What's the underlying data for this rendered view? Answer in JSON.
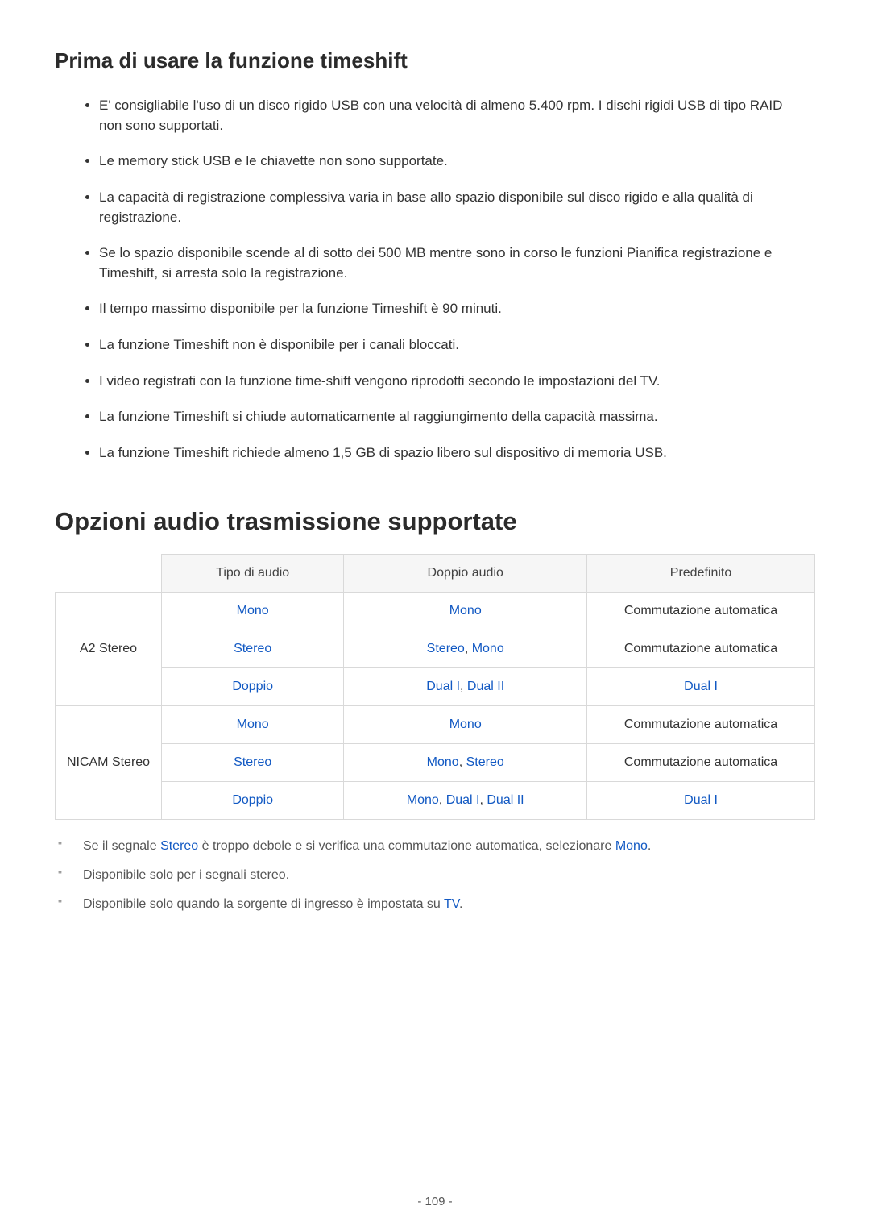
{
  "section1": {
    "title": "Prima di usare la funzione timeshift",
    "bullets": [
      "E' consigliabile l'uso di un disco rigido USB con una velocità di almeno 5.400 rpm. I dischi rigidi USB di tipo RAID non sono supportati.",
      "Le memory stick USB e le chiavette non sono supportate.",
      "La capacità di registrazione complessiva varia in base allo spazio disponibile sul disco rigido e alla qualità di registrazione.",
      "Se lo spazio disponibile scende al di sotto dei 500 MB mentre sono in corso le funzioni Pianifica registrazione e Timeshift, si arresta solo la registrazione.",
      "Il tempo massimo disponibile per la funzione Timeshift è 90 minuti.",
      "La funzione Timeshift non è disponibile per i canali bloccati.",
      "I video registrati con la funzione time-shift vengono riprodotti secondo le impostazioni del TV.",
      "La funzione Timeshift si chiude automaticamente al raggiungimento della capacità massima.",
      "La funzione Timeshift richiede almeno 1,5 GB di spazio libero sul dispositivo di memoria USB."
    ]
  },
  "section2": {
    "title": "Opzioni audio trasmissione supportate",
    "table": {
      "headers": [
        "",
        "Tipo di audio",
        "Doppio audio",
        "Predefinito"
      ],
      "col_widths_pct": [
        14,
        24,
        32,
        30
      ],
      "header_bg": "#f6f6f6",
      "border_color": "#d9d9d9",
      "accent_color": "#1259c3",
      "text_color_normal": "#333333",
      "groups": [
        {
          "label": "A2 Stereo",
          "rows": [
            {
              "tipo": {
                "text": "Mono",
                "accent": true
              },
              "doppio": {
                "text": "Mono",
                "accent": true
              },
              "pred": {
                "text": "Commutazione automatica",
                "accent": false
              }
            },
            {
              "tipo": {
                "text": "Stereo",
                "accent": true
              },
              "doppio_parts": [
                {
                  "text": "Stereo",
                  "accent": true
                },
                {
                  "text": ", ",
                  "accent": false
                },
                {
                  "text": "Mono",
                  "accent": true
                }
              ],
              "pred": {
                "text": "Commutazione automatica",
                "accent": false
              }
            },
            {
              "tipo": {
                "text": "Doppio",
                "accent": true
              },
              "doppio_parts": [
                {
                  "text": "Dual I",
                  "accent": true
                },
                {
                  "text": ", ",
                  "accent": false
                },
                {
                  "text": "Dual II",
                  "accent": true
                }
              ],
              "pred": {
                "text": "Dual I",
                "accent": true
              }
            }
          ]
        },
        {
          "label": "NICAM Stereo",
          "rows": [
            {
              "tipo": {
                "text": "Mono",
                "accent": true
              },
              "doppio": {
                "text": "Mono",
                "accent": true
              },
              "pred": {
                "text": "Commutazione automatica",
                "accent": false
              }
            },
            {
              "tipo": {
                "text": "Stereo",
                "accent": true
              },
              "doppio_parts": [
                {
                  "text": "Mono",
                  "accent": true
                },
                {
                  "text": ", ",
                  "accent": false
                },
                {
                  "text": "Stereo",
                  "accent": true
                }
              ],
              "pred": {
                "text": "Commutazione automatica",
                "accent": false
              }
            },
            {
              "tipo": {
                "text": "Doppio",
                "accent": true
              },
              "doppio_parts": [
                {
                  "text": "Mono",
                  "accent": true
                },
                {
                  "text": ", ",
                  "accent": false
                },
                {
                  "text": "Dual I",
                  "accent": true
                },
                {
                  "text": ", ",
                  "accent": false
                },
                {
                  "text": "Dual II",
                  "accent": true
                }
              ],
              "pred": {
                "text": "Dual I",
                "accent": true
              }
            }
          ]
        }
      ]
    },
    "notes": [
      {
        "parts": [
          {
            "text": "Se il segnale ",
            "accent": false
          },
          {
            "text": "Stereo",
            "accent": true
          },
          {
            "text": " è troppo debole e si verifica una commutazione automatica, selezionare ",
            "accent": false
          },
          {
            "text": "Mono",
            "accent": true
          },
          {
            "text": ".",
            "accent": false
          }
        ]
      },
      {
        "parts": [
          {
            "text": "Disponibile solo per i segnali stereo.",
            "accent": false
          }
        ]
      },
      {
        "parts": [
          {
            "text": "Disponibile solo quando la sorgente di ingresso è impostata su ",
            "accent": false
          },
          {
            "text": "TV",
            "accent": true
          },
          {
            "text": ".",
            "accent": false
          }
        ]
      }
    ]
  },
  "page_number": "- 109 -"
}
